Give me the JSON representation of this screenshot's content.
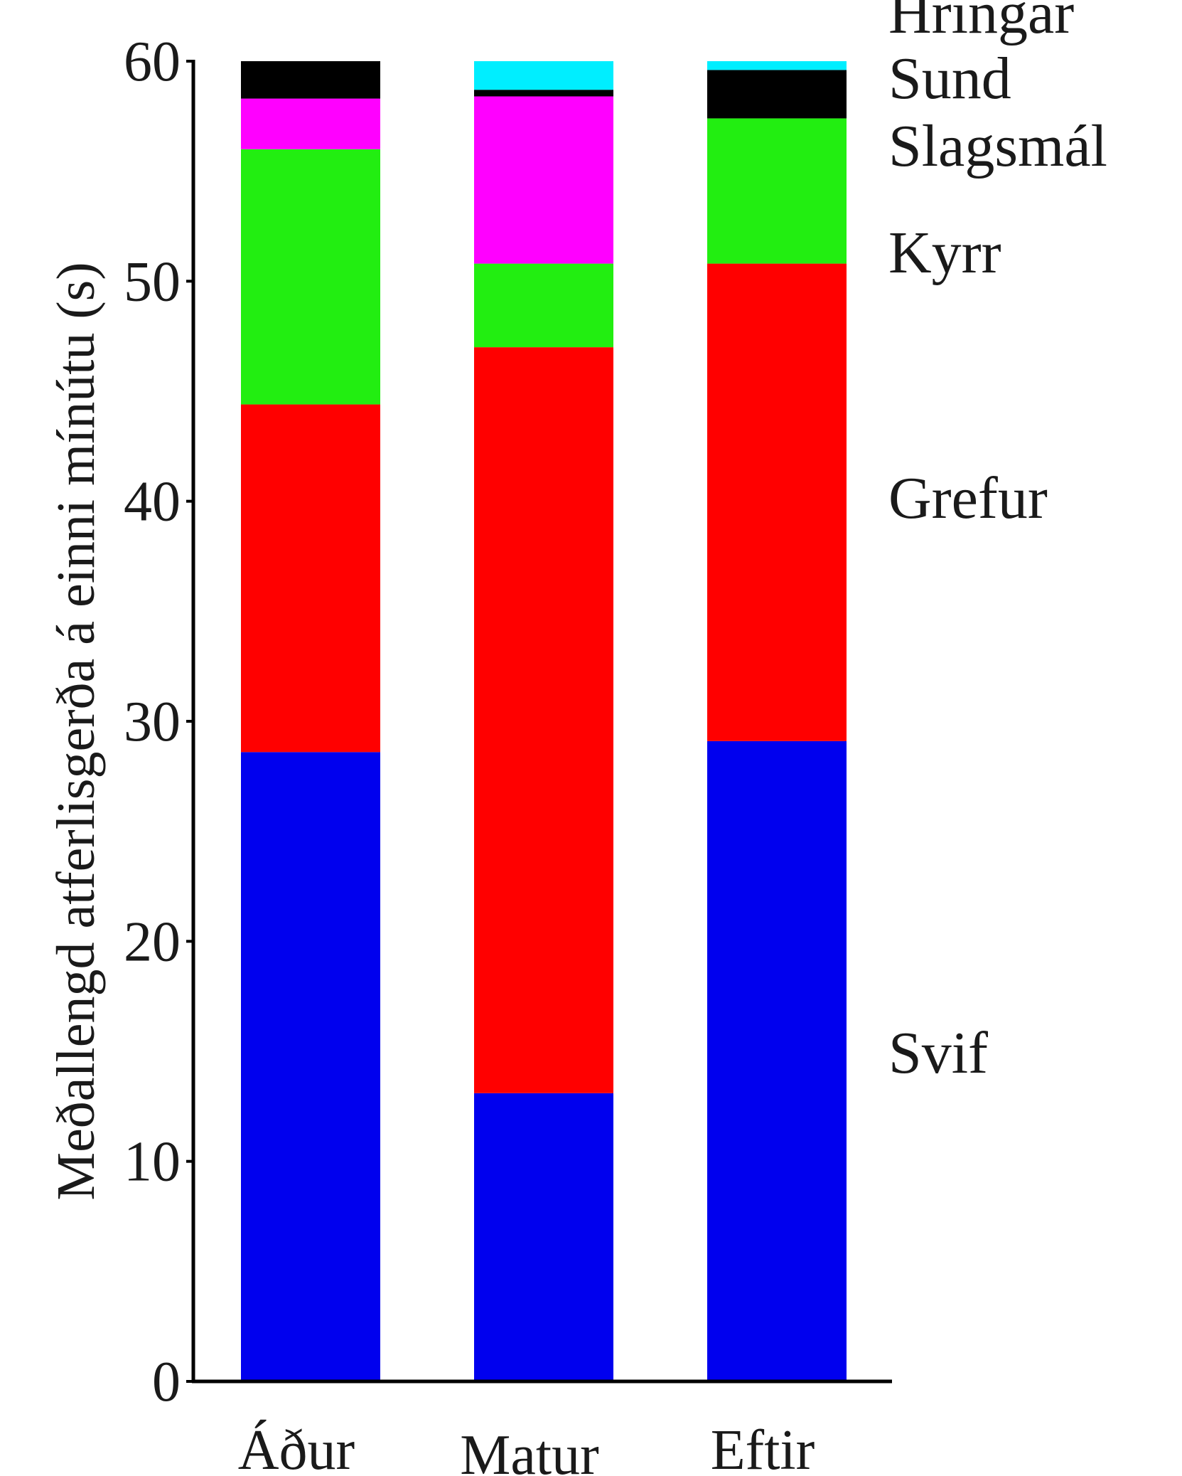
{
  "chart_data": {
    "type": "bar",
    "stacked": true,
    "ylabel": "Meðallengd atferlisgerða á einni mínútu (s)",
    "xlabel": "",
    "ylim": [
      0,
      60
    ],
    "yticks": [
      0,
      10,
      20,
      30,
      40,
      50,
      60
    ],
    "categories": [
      "Áður",
      "Matur",
      "Eftir"
    ],
    "legend_placement": "right, labels beside the last bar",
    "grid": false,
    "series": [
      {
        "name": "Svif",
        "color": "#0000ee",
        "values": [
          28.6,
          13.1,
          29.1
        ]
      },
      {
        "name": "Grefur",
        "color": "#ff0000",
        "values": [
          15.8,
          33.9,
          21.7
        ]
      },
      {
        "name": "Kyrr",
        "color": "#22ee11",
        "values": [
          11.6,
          3.8,
          6.6
        ]
      },
      {
        "name": "Slagsmál",
        "color": "#ff00ff",
        "values": [
          2.3,
          7.6,
          0.0
        ]
      },
      {
        "name": "Sund",
        "color": "#000000",
        "values": [
          1.7,
          0.3,
          2.2
        ]
      },
      {
        "name": "Hringar",
        "color": "#00eeff",
        "values": [
          0.0,
          1.3,
          0.4
        ]
      }
    ]
  }
}
